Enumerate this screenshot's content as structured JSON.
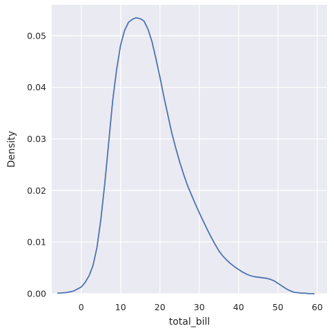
{
  "chart_data": {
    "type": "line",
    "title": "",
    "xlabel": "total_bill",
    "ylabel": "Density",
    "xlim": [
      -7.5,
      62.5
    ],
    "ylim": [
      0,
      0.056
    ],
    "x_ticks": [
      0,
      10,
      20,
      30,
      40,
      50,
      60
    ],
    "y_ticks": [
      0.0,
      0.01,
      0.02,
      0.03,
      0.04,
      0.05
    ],
    "x_tick_labels": [
      "0",
      "10",
      "20",
      "30",
      "40",
      "50",
      "60"
    ],
    "y_tick_labels": [
      "0.00",
      "0.01",
      "0.02",
      "0.03",
      "0.04",
      "0.05"
    ],
    "grid": true,
    "line_color": "#4c72b0",
    "background_color": "#eaeaf2",
    "series": [
      {
        "x": [
          -6.1,
          -4,
          -2,
          0,
          1,
          2,
          3,
          4,
          5,
          6,
          7,
          8,
          9,
          10,
          11,
          12,
          13,
          14,
          15,
          15.5,
          16,
          17,
          18,
          19,
          20,
          21,
          22,
          23,
          24,
          25,
          26,
          27,
          28,
          29,
          30,
          31,
          32,
          33,
          34,
          35,
          36,
          37,
          38,
          39,
          40,
          41,
          42,
          43,
          44,
          45,
          46,
          47,
          48,
          49,
          50,
          51,
          52,
          53,
          54,
          55,
          56,
          57,
          58,
          59.3
        ],
        "values": [
          0.0001,
          0.0002,
          0.0005,
          0.0013,
          0.0022,
          0.0035,
          0.0055,
          0.009,
          0.0145,
          0.0215,
          0.0295,
          0.0375,
          0.0435,
          0.0482,
          0.051,
          0.0526,
          0.0532,
          0.0535,
          0.0533,
          0.0531,
          0.0528,
          0.0512,
          0.0488,
          0.0455,
          0.042,
          0.0382,
          0.0347,
          0.0312,
          0.0283,
          0.0256,
          0.0232,
          0.021,
          0.0192,
          0.0174,
          0.0157,
          0.0141,
          0.0125,
          0.011,
          0.0096,
          0.0083,
          0.0073,
          0.0065,
          0.0058,
          0.0052,
          0.0047,
          0.0042,
          0.0038,
          0.0035,
          0.0033,
          0.0032,
          0.0031,
          0.003,
          0.0028,
          0.0025,
          0.002,
          0.0015,
          0.001,
          0.0006,
          0.0003,
          0.0002,
          0.0001,
          0.0001,
          0.0,
          0.0
        ]
      }
    ]
  }
}
